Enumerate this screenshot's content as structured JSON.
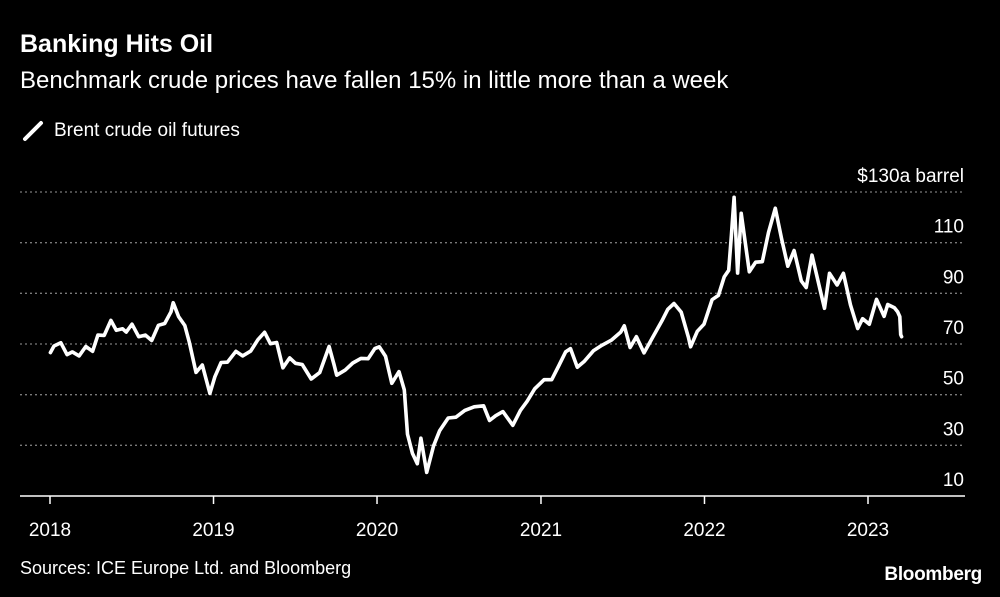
{
  "header": {
    "title": "Banking Hits Oil",
    "subtitle": "Benchmark crude prices have fallen 15% in little more than a week"
  },
  "footer": {
    "source": "Sources: ICE Europe Ltd. and Bloomberg",
    "brand": "Bloomberg"
  },
  "colors": {
    "background": "#000000",
    "line": "#ffffff",
    "grid": "#7a7a7a",
    "text": "#ffffff"
  },
  "chart_data": {
    "type": "line",
    "title": "Banking Hits Oil",
    "subtitle": "Benchmark crude prices have fallen 15% in little more than a week",
    "ylabel": "$130a barrel",
    "ylim": [
      10,
      130
    ],
    "xlim": [
      "2018-01-01",
      "2023-08-01"
    ],
    "y_ticks": [
      10,
      30,
      50,
      70,
      90,
      110,
      130
    ],
    "y_tick_labels": [
      "10",
      "30",
      "50",
      "70",
      "90",
      "110",
      "$130a barrel"
    ],
    "x_ticks": [
      "2018-01-01",
      "2019-01-01",
      "2020-01-01",
      "2021-01-01",
      "2022-01-01",
      "2023-01-01"
    ],
    "x_tick_labels": [
      "2018",
      "2019",
      "2020",
      "2021",
      "2022",
      "2023"
    ],
    "grid": true,
    "grid_style": "dotted-horizontal",
    "legend_position": "top-left",
    "series": [
      {
        "name": "Brent crude oil futures",
        "color": "#ffffff",
        "points": [
          [
            "2018-01-02",
            66.6
          ],
          [
            "2018-01-10",
            69.2
          ],
          [
            "2018-01-25",
            70.5
          ],
          [
            "2018-02-08",
            65.8
          ],
          [
            "2018-02-20",
            66.9
          ],
          [
            "2018-03-07",
            65.3
          ],
          [
            "2018-03-22",
            69.0
          ],
          [
            "2018-04-06",
            67.1
          ],
          [
            "2018-04-18",
            73.5
          ],
          [
            "2018-05-02",
            73.4
          ],
          [
            "2018-05-17",
            79.3
          ],
          [
            "2018-05-29",
            75.4
          ],
          [
            "2018-06-12",
            76.0
          ],
          [
            "2018-06-20",
            74.7
          ],
          [
            "2018-07-03",
            77.8
          ],
          [
            "2018-07-18",
            72.9
          ],
          [
            "2018-08-02",
            73.5
          ],
          [
            "2018-08-16",
            71.4
          ],
          [
            "2018-08-31",
            77.4
          ],
          [
            "2018-09-14",
            78.1
          ],
          [
            "2018-09-28",
            82.7
          ],
          [
            "2018-10-03",
            86.3
          ],
          [
            "2018-10-15",
            80.8
          ],
          [
            "2018-10-29",
            77.3
          ],
          [
            "2018-11-08",
            70.7
          ],
          [
            "2018-11-23",
            58.8
          ],
          [
            "2018-12-07",
            61.7
          ],
          [
            "2018-12-24",
            50.5
          ],
          [
            "2019-01-04",
            57.1
          ],
          [
            "2019-01-18",
            62.7
          ],
          [
            "2019-02-01",
            62.8
          ],
          [
            "2019-02-20",
            67.1
          ],
          [
            "2019-03-07",
            65.3
          ],
          [
            "2019-03-25",
            67.2
          ],
          [
            "2019-04-10",
            71.7
          ],
          [
            "2019-04-25",
            74.6
          ],
          [
            "2019-05-08",
            70.1
          ],
          [
            "2019-05-22",
            70.6
          ],
          [
            "2019-06-05",
            60.6
          ],
          [
            "2019-06-20",
            64.5
          ],
          [
            "2019-07-03",
            62.4
          ],
          [
            "2019-07-18",
            61.9
          ],
          [
            "2019-08-07",
            56.2
          ],
          [
            "2019-08-26",
            58.7
          ],
          [
            "2019-09-16",
            69.0
          ],
          [
            "2019-09-27",
            61.9
          ],
          [
            "2019-10-03",
            57.7
          ],
          [
            "2019-10-22",
            59.7
          ],
          [
            "2019-11-08",
            62.5
          ],
          [
            "2019-11-26",
            64.3
          ],
          [
            "2019-12-12",
            64.2
          ],
          [
            "2019-12-27",
            68.2
          ],
          [
            "2020-01-06",
            68.9
          ],
          [
            "2020-01-20",
            65.2
          ],
          [
            "2020-02-03",
            54.5
          ],
          [
            "2020-02-19",
            59.1
          ],
          [
            "2020-03-02",
            51.9
          ],
          [
            "2020-03-09",
            34.4
          ],
          [
            "2020-03-20",
            26.9
          ],
          [
            "2020-03-31",
            22.7
          ],
          [
            "2020-04-08",
            32.8
          ],
          [
            "2020-04-21",
            19.3
          ],
          [
            "2020-05-06",
            29.7
          ],
          [
            "2020-05-20",
            35.8
          ],
          [
            "2020-06-08",
            40.8
          ],
          [
            "2020-06-25",
            41.1
          ],
          [
            "2020-07-15",
            43.8
          ],
          [
            "2020-08-05",
            45.2
          ],
          [
            "2020-08-26",
            45.6
          ],
          [
            "2020-09-08",
            39.8
          ],
          [
            "2020-09-22",
            41.7
          ],
          [
            "2020-10-08",
            43.3
          ],
          [
            "2020-10-30",
            37.9
          ],
          [
            "2020-11-16",
            43.8
          ],
          [
            "2020-12-01",
            47.4
          ],
          [
            "2020-12-18",
            52.3
          ],
          [
            "2021-01-08",
            55.9
          ],
          [
            "2021-01-25",
            55.9
          ],
          [
            "2021-02-10",
            61.5
          ],
          [
            "2021-02-25",
            66.9
          ],
          [
            "2021-03-08",
            68.2
          ],
          [
            "2021-03-23",
            60.8
          ],
          [
            "2021-04-08",
            63.2
          ],
          [
            "2021-04-28",
            67.3
          ],
          [
            "2021-05-17",
            69.5
          ],
          [
            "2021-06-07",
            71.5
          ],
          [
            "2021-06-28",
            74.7
          ],
          [
            "2021-07-06",
            77.2
          ],
          [
            "2021-07-19",
            68.6
          ],
          [
            "2021-08-02",
            72.9
          ],
          [
            "2021-08-19",
            66.5
          ],
          [
            "2021-09-06",
            72.2
          ],
          [
            "2021-09-28",
            79.1
          ],
          [
            "2021-10-11",
            83.7
          ],
          [
            "2021-10-25",
            86.0
          ],
          [
            "2021-11-10",
            82.6
          ],
          [
            "2021-11-26",
            72.7
          ],
          [
            "2021-12-01",
            68.9
          ],
          [
            "2021-12-16",
            75.0
          ],
          [
            "2021-12-31",
            77.8
          ],
          [
            "2022-01-18",
            87.5
          ],
          [
            "2022-02-01",
            89.2
          ],
          [
            "2022-02-14",
            96.5
          ],
          [
            "2022-02-24",
            99.1
          ],
          [
            "2022-03-02",
            112.9
          ],
          [
            "2022-03-08",
            127.9
          ],
          [
            "2022-03-16",
            98.0
          ],
          [
            "2022-03-24",
            121.6
          ],
          [
            "2022-04-11",
            98.5
          ],
          [
            "2022-04-25",
            102.3
          ],
          [
            "2022-05-10",
            102.5
          ],
          [
            "2022-05-24",
            114.0
          ],
          [
            "2022-06-08",
            123.6
          ],
          [
            "2022-06-22",
            111.7
          ],
          [
            "2022-07-06",
            100.7
          ],
          [
            "2022-07-20",
            106.9
          ],
          [
            "2022-08-05",
            94.9
          ],
          [
            "2022-08-16",
            92.3
          ],
          [
            "2022-08-29",
            105.1
          ],
          [
            "2022-09-16",
            91.4
          ],
          [
            "2022-09-26",
            84.1
          ],
          [
            "2022-10-07",
            97.9
          ],
          [
            "2022-10-24",
            93.3
          ],
          [
            "2022-11-07",
            97.9
          ],
          [
            "2022-11-23",
            85.4
          ],
          [
            "2022-12-09",
            76.1
          ],
          [
            "2022-12-20",
            80.0
          ],
          [
            "2023-01-04",
            77.8
          ],
          [
            "2023-01-20",
            87.6
          ],
          [
            "2023-02-06",
            80.9
          ],
          [
            "2023-02-14",
            85.6
          ],
          [
            "2023-03-01",
            84.3
          ],
          [
            "2023-03-08",
            82.7
          ],
          [
            "2023-03-13",
            80.8
          ],
          [
            "2023-03-15",
            73.7
          ],
          [
            "2023-03-17",
            72.9
          ]
        ]
      }
    ]
  }
}
